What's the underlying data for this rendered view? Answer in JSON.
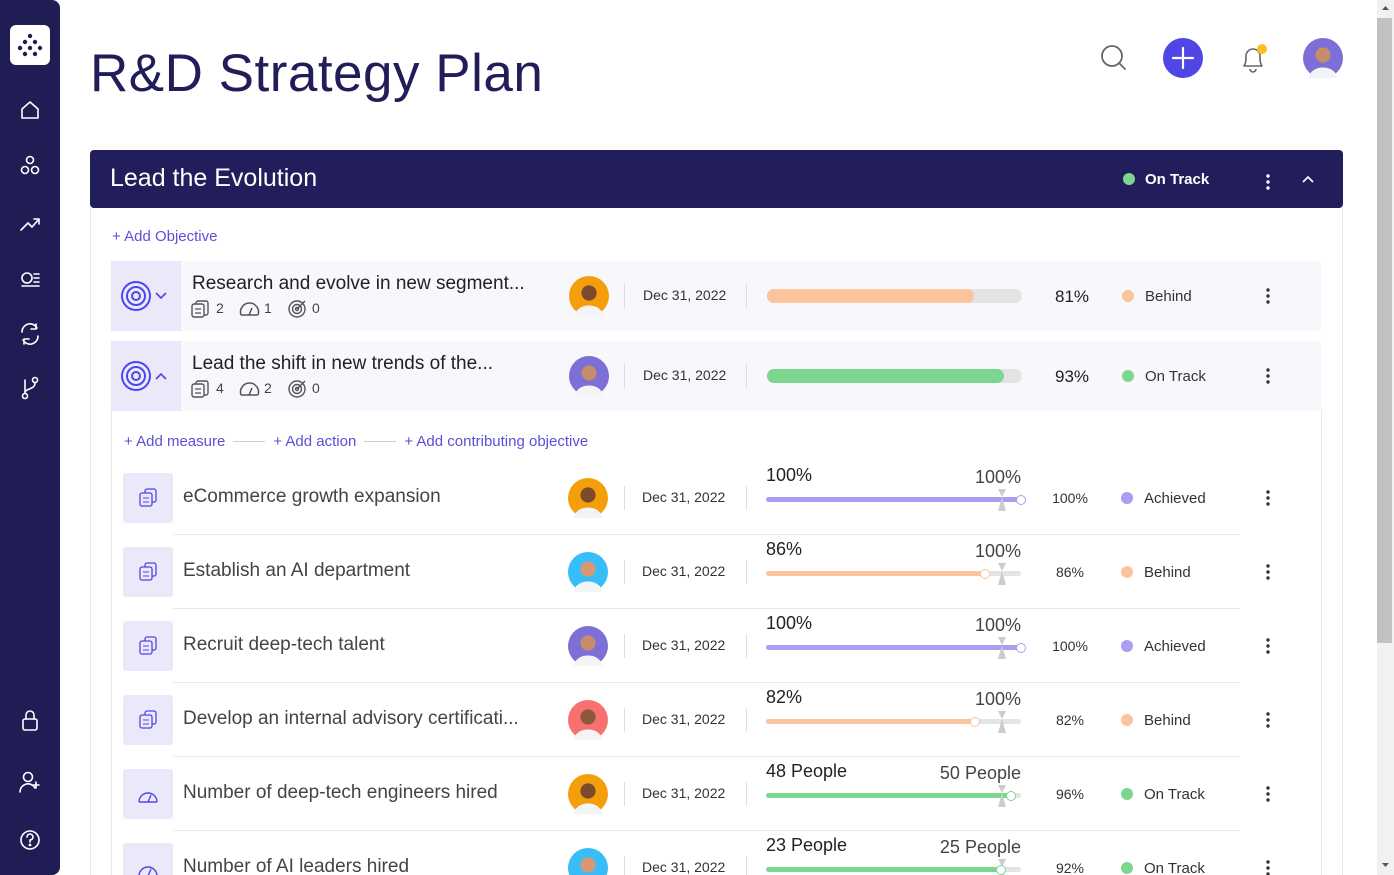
{
  "header": {
    "title": "R&D Strategy Plan"
  },
  "goal": {
    "title": "Lead the Evolution",
    "status": "On Track",
    "status_color": "#7dd68f",
    "add_objective": "+ Add Objective"
  },
  "objectives": [
    {
      "title": "Research and evolve in new segment...",
      "measures": 2,
      "actions": 1,
      "objectives": 0,
      "date": "Dec 31, 2022",
      "progress": 81,
      "progress_label": "81%",
      "status": "Behind",
      "color": "#fcc49c"
    },
    {
      "title": "Lead the shift in new trends of the...",
      "measures": 4,
      "actions": 2,
      "objectives": 0,
      "date": "Dec 31, 2022",
      "progress": 93,
      "progress_label": "93%",
      "status": "On Track",
      "color": "#7dd68f"
    }
  ],
  "expanded_links": [
    "+ Add measure",
    "+ Add action",
    "+ Add contributing objective"
  ],
  "measures": [
    {
      "kind": "measure",
      "title": "eCommerce growth expansion",
      "date": "Dec 31, 2022",
      "current": "100%",
      "target": "100%",
      "progress": 100,
      "progress_label": "100%",
      "status": "Achieved",
      "color": "#aa9ef2"
    },
    {
      "kind": "measure",
      "title": "Establish an AI department",
      "date": "Dec 31, 2022",
      "current": "86%",
      "target": "100%",
      "progress": 86,
      "progress_label": "86%",
      "status": "Behind",
      "color": "#fcc49c"
    },
    {
      "kind": "measure",
      "title": "Recruit deep-tech talent",
      "date": "Dec 31, 2022",
      "current": "100%",
      "target": "100%",
      "progress": 100,
      "progress_label": "100%",
      "status": "Achieved",
      "color": "#aa9ef2"
    },
    {
      "kind": "measure",
      "title": "Develop an internal advisory certificati...",
      "date": "Dec 31, 2022",
      "current": "82%",
      "target": "100%",
      "progress": 82,
      "progress_label": "82%",
      "status": "Behind",
      "color": "#fcc49c"
    },
    {
      "kind": "action",
      "title": "Number of deep-tech engineers hired",
      "date": "Dec 31, 2022",
      "current": "48 People",
      "target": "50 People",
      "progress": 96,
      "progress_label": "96%",
      "status": "On Track",
      "color": "#7dd68f"
    },
    {
      "kind": "action",
      "title": "Number of AI leaders hired",
      "date": "Dec 31, 2022",
      "current": "23 People",
      "target": "25 People",
      "progress": 92,
      "progress_label": "92%",
      "status": "On Track",
      "color": "#7dd68f"
    }
  ]
}
